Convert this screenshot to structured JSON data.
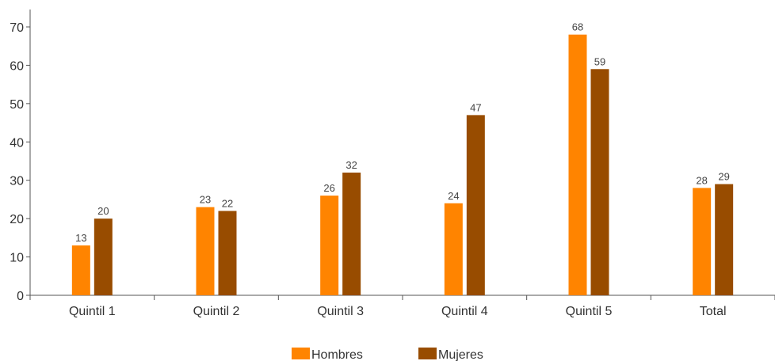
{
  "chart_data": {
    "type": "bar",
    "categories": [
      "Quintil 1",
      "Quintil 2",
      "Quintil 3",
      "Quintil 4",
      "Quintil 5",
      "Total"
    ],
    "series": [
      {
        "name": "Hombres",
        "values": [
          13,
          23,
          26,
          24,
          68,
          28
        ],
        "color": "#ff8400"
      },
      {
        "name": "Mujeres",
        "values": [
          20,
          22,
          32,
          47,
          59,
          29
        ],
        "color": "#984c00"
      }
    ],
    "title": "",
    "xlabel": "",
    "ylabel": "",
    "ylim": [
      0,
      70
    ],
    "yticks": [
      0,
      10,
      20,
      30,
      40,
      50,
      60,
      70
    ],
    "grid": false,
    "legend_position": "bottom-center"
  }
}
